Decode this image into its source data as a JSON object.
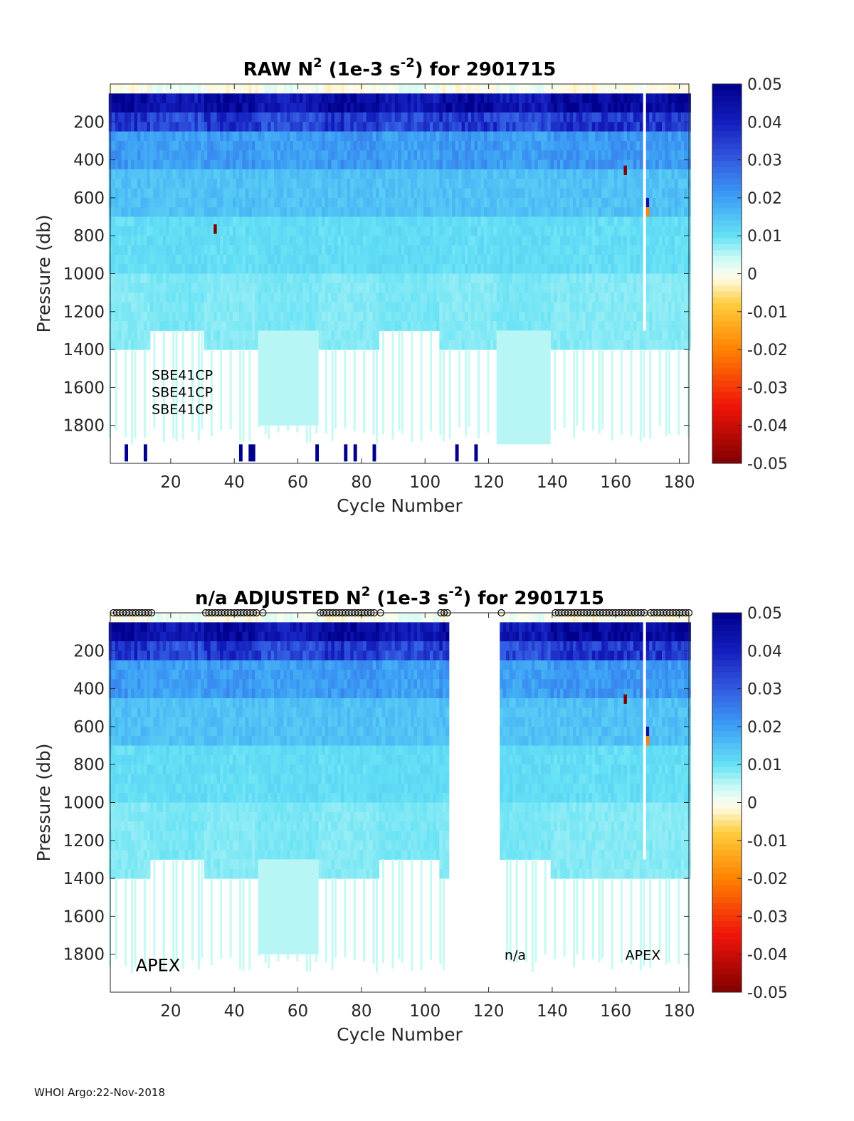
{
  "footer_text": "WHOI Argo:22-Nov-2018",
  "chart_data": [
    {
      "type": "heatmap",
      "title_prefix": "RAW N",
      "title_sup": "2",
      "title_units_pre": " (1e-3 s",
      "title_units_sup": "-2",
      "title_suffix": ") for 2901715",
      "xlabel": "Cycle Number",
      "ylabel": "Pressure (db)",
      "xlim": [
        1,
        183
      ],
      "ylim": [
        0,
        2000
      ],
      "y_reversed": true,
      "xticks": [
        20,
        40,
        60,
        80,
        100,
        120,
        140,
        160,
        180
      ],
      "yticks": [
        200,
        400,
        600,
        800,
        1000,
        1200,
        1400,
        1600,
        1800
      ],
      "colorbar": {
        "min": -0.05,
        "max": 0.05,
        "ticks": [
          "0.05",
          "0.04",
          "0.03",
          "0.02",
          "0.01",
          "0",
          "-0.01",
          "-0.02",
          "-0.03",
          "-0.04",
          "-0.05"
        ],
        "colormap": "jet-inverted-with-white-center"
      },
      "missing_cycles": [],
      "annotations": [
        {
          "text": "SBE41CP",
          "x": 14,
          "y": 1530
        },
        {
          "text": "SBE41CP",
          "x": 14,
          "y": 1620
        },
        {
          "text": "SBE41CP",
          "x": 14,
          "y": 1710
        }
      ]
    },
    {
      "type": "heatmap",
      "title_prefix": "n/a  ADJUSTED N",
      "title_sup": "2",
      "title_units_pre": " (1e-3 s",
      "title_units_sup": "-2",
      "title_suffix": ") for 2901715",
      "xlabel": "Cycle Number",
      "ylabel": "Pressure (db)",
      "xlim": [
        1,
        183
      ],
      "ylim": [
        0,
        2000
      ],
      "y_reversed": true,
      "xticks": [
        20,
        40,
        60,
        80,
        100,
        120,
        140,
        160,
        180
      ],
      "yticks": [
        200,
        400,
        600,
        800,
        1000,
        1200,
        1400,
        1600,
        1800
      ],
      "colorbar": {
        "min": -0.05,
        "max": 0.05,
        "ticks": [
          "0.05",
          "0.04",
          "0.03",
          "0.02",
          "0.01",
          "0",
          "-0.01",
          "-0.02",
          "-0.03",
          "-0.04",
          "-0.05"
        ],
        "colormap": "jet-inverted-with-white-center"
      },
      "missing_cycles": [
        [
          108,
          123
        ]
      ],
      "qc_marker_cycles": [
        2,
        3,
        4,
        5,
        6,
        7,
        8,
        9,
        10,
        11,
        12,
        13,
        14,
        31,
        32,
        33,
        34,
        35,
        36,
        37,
        38,
        39,
        40,
        41,
        42,
        43,
        44,
        45,
        46,
        47,
        49,
        67,
        68,
        69,
        70,
        71,
        72,
        73,
        74,
        75,
        76,
        77,
        78,
        79,
        80,
        81,
        82,
        83,
        84,
        86,
        105,
        106,
        107,
        124,
        141,
        142,
        143,
        144,
        145,
        146,
        147,
        148,
        149,
        150,
        151,
        152,
        153,
        154,
        155,
        156,
        157,
        158,
        159,
        160,
        161,
        162,
        163,
        164,
        165,
        166,
        167,
        168,
        169,
        171,
        172,
        173,
        174,
        175,
        176,
        177,
        178,
        179,
        180,
        181,
        182,
        183
      ],
      "annotations": [
        {
          "text": "APEX",
          "x": 9,
          "y": 1860
        },
        {
          "text": "n/a",
          "x": 125,
          "y": 1800
        },
        {
          "text": "APEX",
          "x": 163,
          "y": 1800
        }
      ]
    }
  ]
}
